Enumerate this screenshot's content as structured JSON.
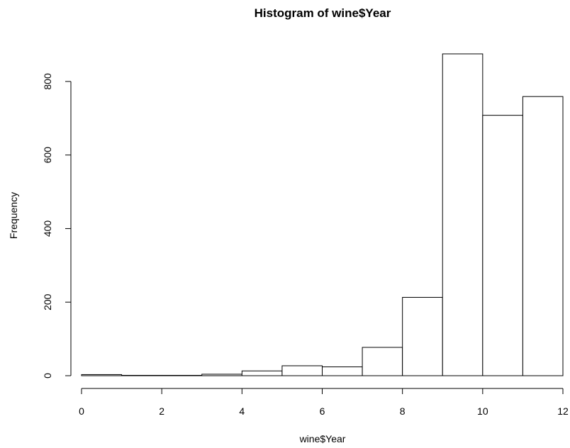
{
  "chart_data": {
    "type": "bar",
    "title": "Histogram of wine$Year",
    "xlabel": "wine$Year",
    "ylabel": "Frequency",
    "bins": [
      {
        "x0": 0,
        "x1": 1,
        "value": 3
      },
      {
        "x0": 1,
        "x1": 2,
        "value": 1
      },
      {
        "x0": 2,
        "x1": 3,
        "value": 1
      },
      {
        "x0": 3,
        "x1": 4,
        "value": 4
      },
      {
        "x0": 4,
        "x1": 5,
        "value": 13
      },
      {
        "x0": 5,
        "x1": 6,
        "value": 27
      },
      {
        "x0": 6,
        "x1": 7,
        "value": 24
      },
      {
        "x0": 7,
        "x1": 8,
        "value": 77
      },
      {
        "x0": 8,
        "x1": 9,
        "value": 213
      },
      {
        "x0": 9,
        "x1": 10,
        "value": 875
      },
      {
        "x0": 10,
        "x1": 11,
        "value": 708
      },
      {
        "x0": 11,
        "x1": 12,
        "value": 759
      }
    ],
    "xticks": [
      0,
      2,
      4,
      6,
      8,
      10,
      12
    ],
    "yticks": [
      0,
      200,
      400,
      600,
      800
    ],
    "xlim": [
      0,
      12
    ],
    "ylim": [
      0,
      875
    ],
    "grid": false,
    "bar_fill": "#ffffff",
    "bar_stroke": "#000000"
  }
}
